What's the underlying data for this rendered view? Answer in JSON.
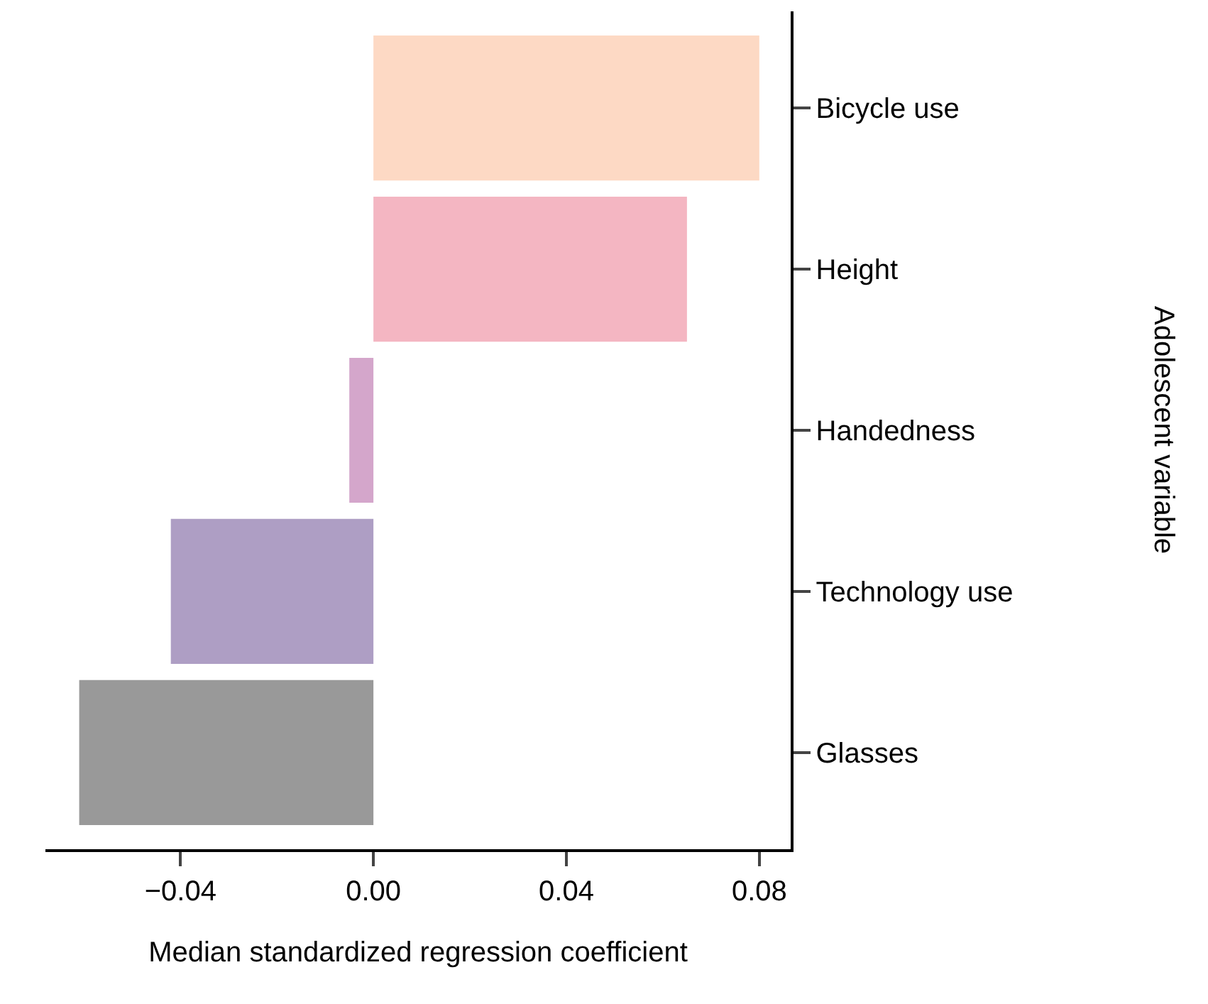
{
  "chart_data": {
    "type": "bar",
    "orientation": "horizontal",
    "xlabel": "Median standardized regression coefficient",
    "ylabel": "Adolescent variable",
    "categories": [
      "Bicycle use",
      "Height",
      "Handedness",
      "Technology use",
      "Glasses"
    ],
    "values": [
      0.08,
      0.065,
      -0.005,
      -0.042,
      -0.061
    ],
    "colors": [
      "#fdd9c4",
      "#f4b6c2",
      "#d4a6cb",
      "#ae9ec4",
      "#999999"
    ],
    "xlim": [
      -0.068,
      0.0865
    ],
    "xticks": [
      {
        "value": -0.04,
        "label": "−0.04"
      },
      {
        "value": 0,
        "label": "0.00"
      },
      {
        "value": 0.04,
        "label": "0.04"
      },
      {
        "value": 0.08,
        "label": "0.08"
      }
    ],
    "grid": false
  }
}
